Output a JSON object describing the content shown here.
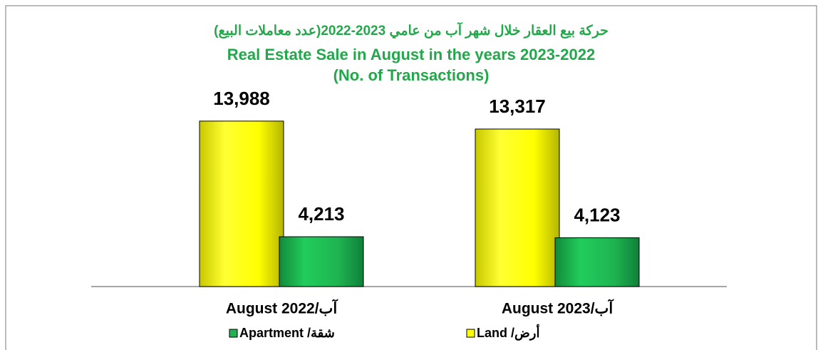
{
  "chart_data": {
    "type": "bar",
    "title": "حركة بيع العقار خلال شهر آب من عامي 2023-2022(عدد معاملات البيع)",
    "subtitle": "Real Estate Sale in August in the years 2023-2022",
    "subtitle2": "(No. of Transactions)",
    "categories": [
      "August 2022/آب",
      "August 2023/آب"
    ],
    "series": [
      {
        "name": "Land /أرض",
        "color": "#ffff00",
        "values": [
          13988,
          13317
        ],
        "value_labels": [
          "13,988",
          "13,317"
        ]
      },
      {
        "name": "Apartment /شقة",
        "color": "#1fb451",
        "values": [
          4213,
          4123
        ],
        "value_labels": [
          "4,213",
          "4,123"
        ]
      }
    ],
    "ylim": [
      0,
      16000
    ]
  }
}
